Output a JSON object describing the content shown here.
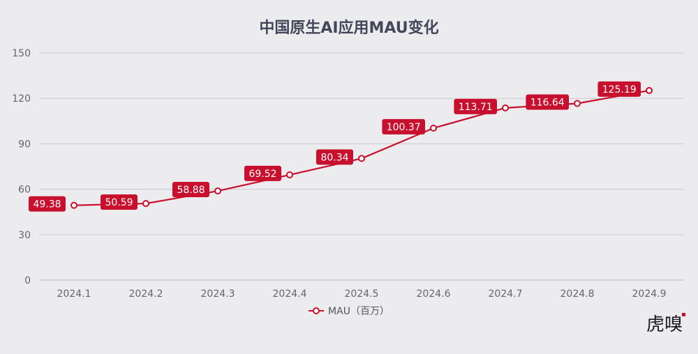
{
  "chart_data": {
    "type": "line",
    "title": "中国原生AI应用MAU变化",
    "categories": [
      "2024.1",
      "2024.2",
      "2024.3",
      "2024.4",
      "2024.5",
      "2024.6",
      "2024.7",
      "2024.8",
      "2024.9"
    ],
    "series": [
      {
        "name": "MAU（百万）",
        "values": [
          49.38,
          50.59,
          58.88,
          69.52,
          80.34,
          100.37,
          113.71,
          116.64,
          125.19
        ],
        "color": "#c8102e"
      }
    ],
    "ylim": [
      0,
      150
    ],
    "yticks": [
      0,
      30,
      60,
      90,
      120,
      150
    ],
    "grid": true,
    "legend_position": "bottom-center"
  },
  "watermark": {
    "text": "虎嗅",
    "accent_color": "#c8102e"
  }
}
